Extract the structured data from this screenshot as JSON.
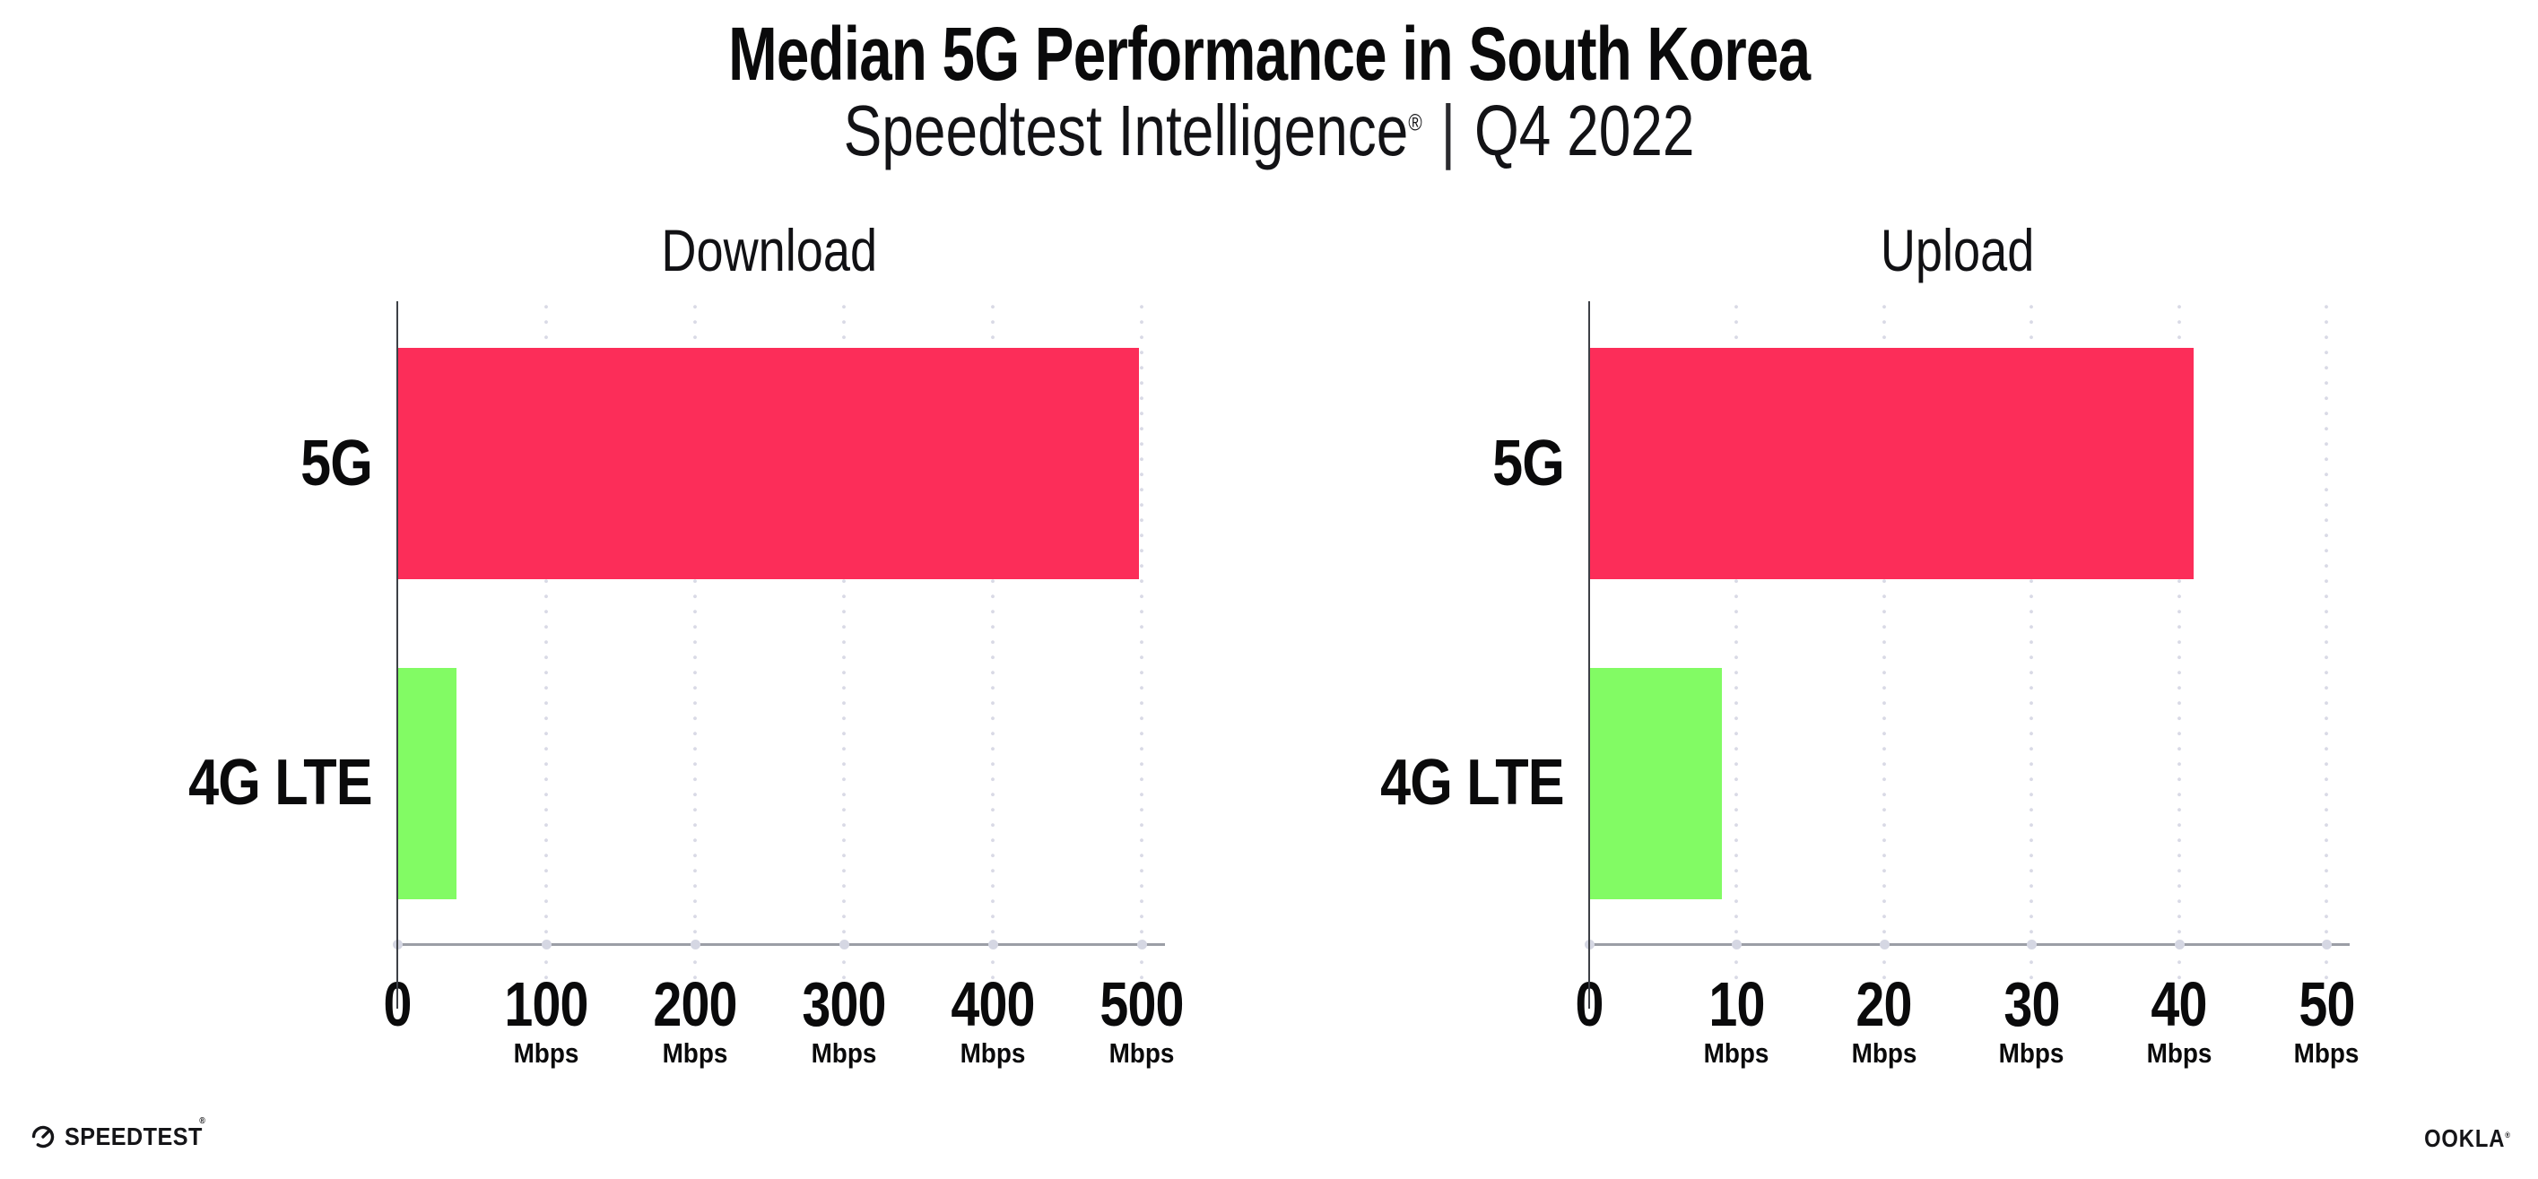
{
  "header": {
    "title": "Median 5G Performance in South Korea",
    "subtitle": {
      "brand": "Speedtest Intelligence",
      "registered": "®",
      "separator": "|",
      "period": "Q4 2022"
    }
  },
  "chart_data": [
    {
      "type": "bar",
      "orientation": "horizontal",
      "title": "Download",
      "categories": [
        "5G",
        "4G LTE"
      ],
      "values": [
        498,
        40
      ],
      "unit": "Mbps",
      "xlim": [
        0,
        500
      ],
      "xticks": [
        0,
        100,
        200,
        300,
        400,
        500
      ],
      "tick_unit": "Mbps",
      "bar_colors": [
        "#FC2D59",
        "#82FB64"
      ],
      "grid": "dotted-vertical",
      "legend": "none"
    },
    {
      "type": "bar",
      "orientation": "horizontal",
      "title": "Upload",
      "categories": [
        "5G",
        "4G LTE"
      ],
      "values": [
        41,
        9
      ],
      "unit": "Mbps",
      "xlim": [
        0,
        50
      ],
      "xticks": [
        0,
        10,
        20,
        30,
        40,
        50
      ],
      "tick_unit": "Mbps",
      "bar_colors": [
        "#FC2D59",
        "#82FB64"
      ],
      "grid": "dotted-vertical",
      "legend": "none"
    }
  ],
  "footer": {
    "speedtest": {
      "text": "SPEEDTEST",
      "registered": "®"
    },
    "ookla": {
      "text": "OOKLA",
      "registered": "®"
    }
  },
  "colors": {
    "bar_5g": "#FC2D59",
    "bar_4g_lte": "#82FB64",
    "grid_dot": "#D9DAE6",
    "x_axis": "#9B9EA6",
    "y_axis": "#3D4046",
    "text": "#0A0A0B",
    "background": "#FFFFFF"
  }
}
